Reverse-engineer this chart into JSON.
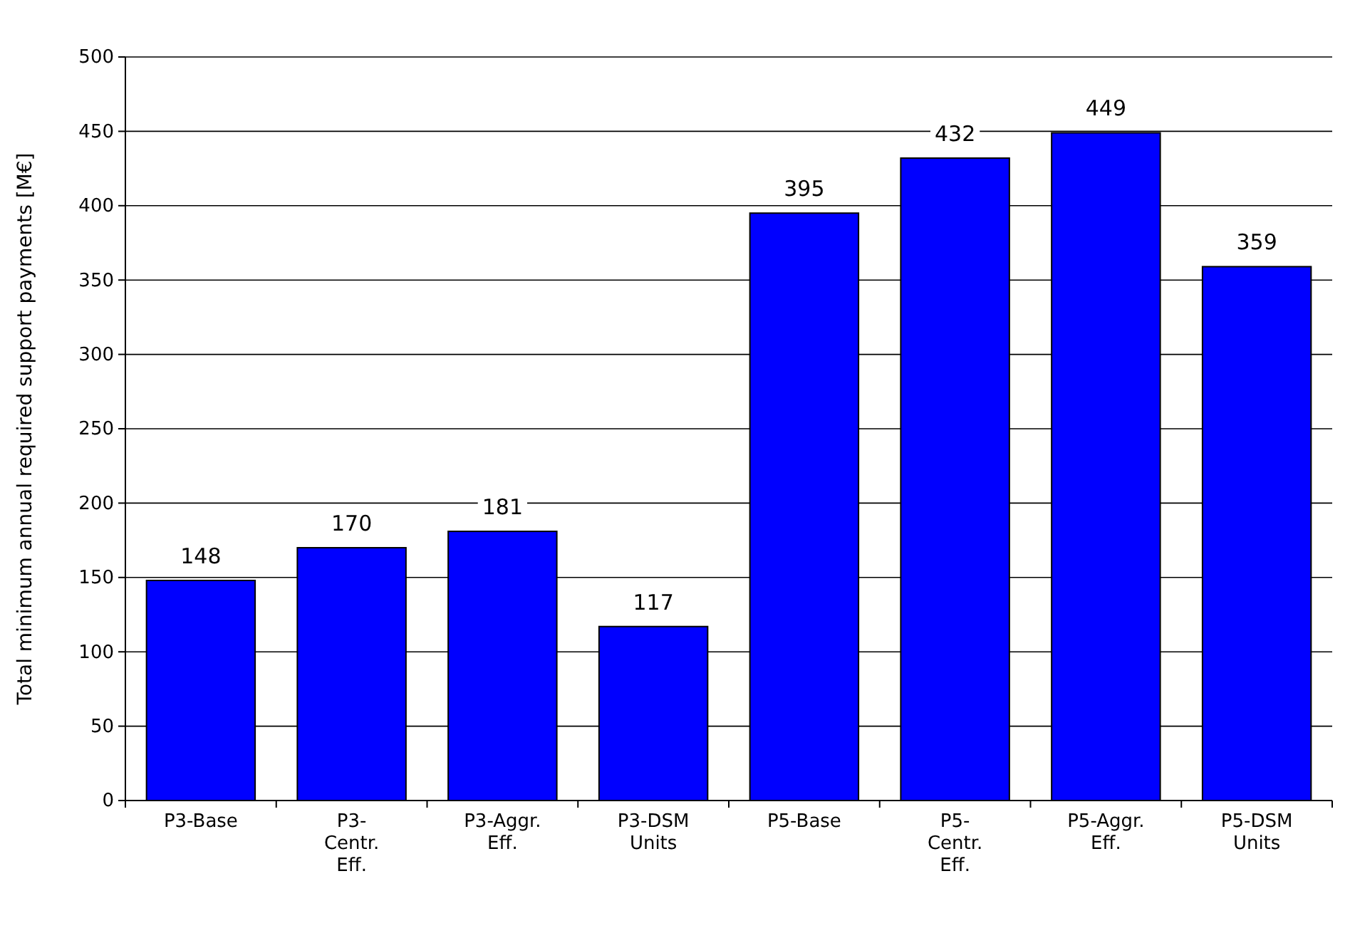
{
  "chart_data": {
    "type": "bar",
    "ylabel": "Total minimum annual required support payments [M€]",
    "categories": [
      "P3-Base",
      "P3-Centr. Eff.",
      "P3-Aggr. Eff.",
      "P3-DSM Units",
      "P5-Base",
      "P5-Centr. Eff.",
      "P5-Aggr. Eff.",
      "P5-DSM Units"
    ],
    "values": [
      148,
      170,
      181,
      117,
      395,
      432,
      449,
      359
    ],
    "color": "#0000ff",
    "ylim": [
      0,
      500
    ],
    "yticks": [
      0,
      50,
      100,
      150,
      200,
      250,
      300,
      350,
      400,
      450,
      500
    ],
    "grid": "y",
    "data_labels": true
  }
}
